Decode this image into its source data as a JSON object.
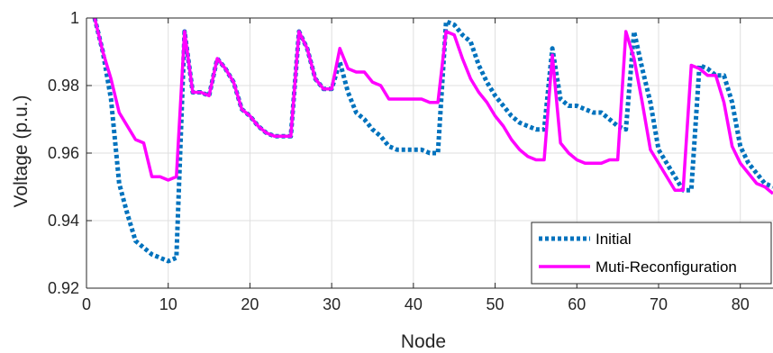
{
  "chart_data": {
    "type": "line",
    "xlabel": "Node",
    "ylabel": "Voltage (p.u.)",
    "xlim": [
      0,
      84
    ],
    "ylim": [
      0.92,
      1.0
    ],
    "xticks": [
      0,
      10,
      20,
      30,
      40,
      50,
      60,
      70,
      80
    ],
    "yticks": [
      0.92,
      0.94,
      0.96,
      0.98,
      1.0
    ],
    "xtick_labels": [
      "0",
      "10",
      "20",
      "30",
      "40",
      "50",
      "60",
      "70",
      "80"
    ],
    "ytick_labels": [
      "0.92",
      "0.94",
      "0.96",
      "0.98",
      "1"
    ],
    "grid": true,
    "legend_position": "bottom-right",
    "series": [
      {
        "name": "Initial",
        "color": "#0072BD",
        "style": "dotted",
        "x": [
          1,
          2,
          3,
          4,
          5,
          6,
          7,
          8,
          9,
          10,
          11,
          12,
          13,
          14,
          15,
          16,
          17,
          18,
          19,
          20,
          21,
          22,
          23,
          24,
          25,
          26,
          27,
          28,
          29,
          30,
          31,
          32,
          33,
          34,
          35,
          36,
          37,
          38,
          39,
          40,
          41,
          42,
          43,
          44,
          45,
          46,
          47,
          48,
          49,
          50,
          51,
          52,
          53,
          54,
          55,
          56,
          57,
          58,
          59,
          60,
          61,
          62,
          63,
          64,
          65,
          66,
          67,
          68,
          69,
          70,
          71,
          72,
          73,
          74,
          75,
          76,
          77,
          78,
          79,
          80,
          81,
          82,
          83,
          84
        ],
        "values": [
          1.0,
          0.99,
          0.976,
          0.951,
          0.942,
          0.934,
          0.932,
          0.93,
          0.929,
          0.928,
          0.929,
          0.996,
          0.978,
          0.978,
          0.977,
          0.988,
          0.985,
          0.981,
          0.973,
          0.971,
          0.968,
          0.966,
          0.965,
          0.965,
          0.965,
          0.996,
          0.991,
          0.982,
          0.979,
          0.979,
          0.987,
          0.978,
          0.972,
          0.97,
          0.967,
          0.965,
          0.962,
          0.961,
          0.961,
          0.961,
          0.961,
          0.96,
          0.96,
          0.999,
          0.998,
          0.995,
          0.993,
          0.986,
          0.981,
          0.977,
          0.974,
          0.971,
          0.969,
          0.968,
          0.967,
          0.967,
          0.991,
          0.976,
          0.974,
          0.974,
          0.973,
          0.972,
          0.972,
          0.97,
          0.968,
          0.967,
          0.996,
          0.985,
          0.975,
          0.961,
          0.957,
          0.953,
          0.949,
          0.949,
          0.986,
          0.985,
          0.983,
          0.983,
          0.975,
          0.962,
          0.957,
          0.954,
          0.951,
          0.95
        ]
      },
      {
        "name": "Muti-Reconfiguration",
        "color": "#FF00FF",
        "style": "solid",
        "x": [
          1,
          2,
          3,
          4,
          5,
          6,
          7,
          8,
          9,
          10,
          11,
          12,
          13,
          14,
          15,
          16,
          17,
          18,
          19,
          20,
          21,
          22,
          23,
          24,
          25,
          26,
          27,
          28,
          29,
          30,
          31,
          32,
          33,
          34,
          35,
          36,
          37,
          38,
          39,
          40,
          41,
          42,
          43,
          44,
          45,
          46,
          47,
          48,
          49,
          50,
          51,
          52,
          53,
          54,
          55,
          56,
          57,
          58,
          59,
          60,
          61,
          62,
          63,
          64,
          65,
          66,
          67,
          68,
          69,
          70,
          71,
          72,
          73,
          74,
          75,
          76,
          77,
          78,
          79,
          80,
          81,
          82,
          83,
          84
        ],
        "values": [
          1.0,
          0.99,
          0.982,
          0.972,
          0.968,
          0.964,
          0.963,
          0.953,
          0.953,
          0.952,
          0.953,
          0.996,
          0.978,
          0.978,
          0.977,
          0.988,
          0.985,
          0.981,
          0.973,
          0.971,
          0.968,
          0.966,
          0.965,
          0.965,
          0.965,
          0.996,
          0.991,
          0.982,
          0.979,
          0.979,
          0.991,
          0.985,
          0.984,
          0.984,
          0.981,
          0.98,
          0.976,
          0.976,
          0.976,
          0.976,
          0.976,
          0.975,
          0.975,
          0.996,
          0.995,
          0.988,
          0.982,
          0.978,
          0.975,
          0.971,
          0.968,
          0.964,
          0.961,
          0.959,
          0.958,
          0.958,
          0.989,
          0.963,
          0.96,
          0.958,
          0.957,
          0.957,
          0.957,
          0.958,
          0.958,
          0.996,
          0.988,
          0.975,
          0.961,
          0.957,
          0.953,
          0.949,
          0.949,
          0.986,
          0.985,
          0.983,
          0.983,
          0.975,
          0.962,
          0.957,
          0.954,
          0.951,
          0.95,
          0.948
        ]
      }
    ]
  }
}
